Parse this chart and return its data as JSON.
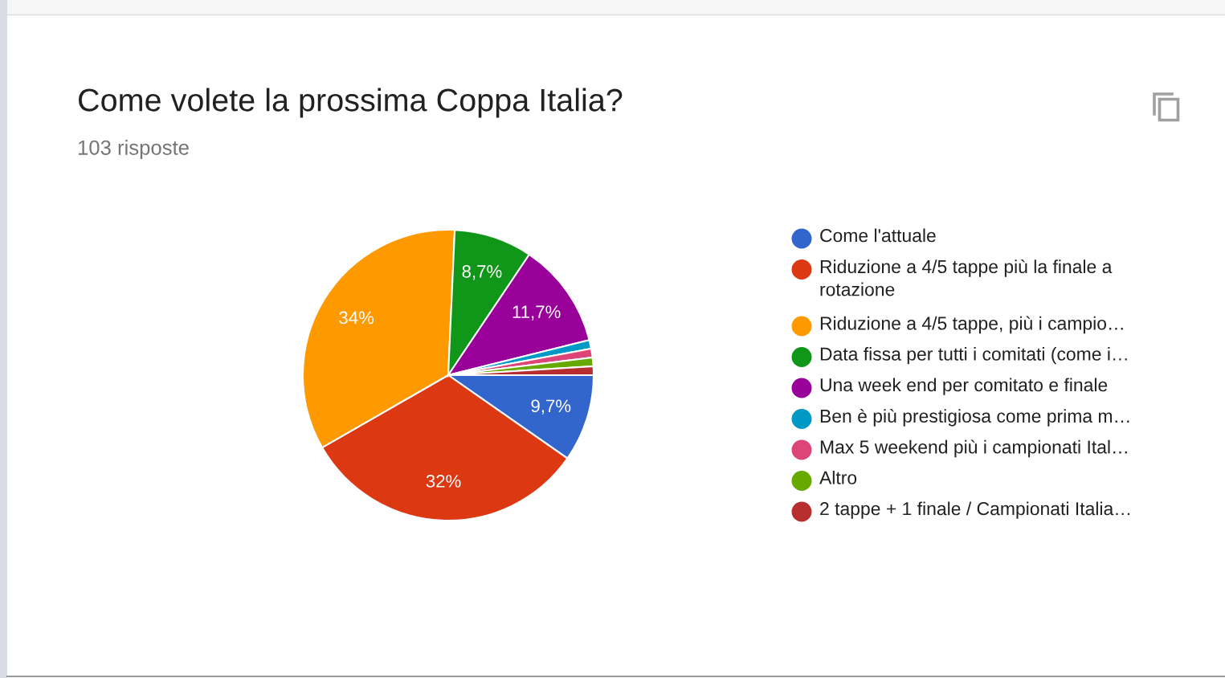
{
  "chart_data": {
    "type": "pie",
    "title": "Come volete la prossima Coppa Italia?",
    "subtitle": "103 risposte",
    "categories": [
      "Come l'attuale",
      "Riduzione a 4/5 tappe più la finale a rotazione",
      "Riduzione a 4/5 tappe, più i campio…",
      "Data fissa per tutti i comitati (come i…",
      "Una week end per comitato e finale",
      "Ben è più prestigiosa come prima m…",
      "Max 5 weekend più i campionati Ital…",
      "Altro",
      "2 tappe + 1 finale / Campionati Italia…"
    ],
    "values": [
      9.7,
      32,
      34,
      8.7,
      11.7,
      0.97,
      0.97,
      0.97,
      0.97
    ],
    "colors": [
      "#3366cc",
      "#dc3912",
      "#ff9900",
      "#109618",
      "#990099",
      "#0099c6",
      "#dd4477",
      "#66aa00",
      "#b82e2e"
    ],
    "value_labels": [
      "9,7%",
      "32%",
      "34%",
      "8,7%",
      "11,7%",
      null,
      null,
      null,
      null
    ],
    "legend": "right"
  }
}
